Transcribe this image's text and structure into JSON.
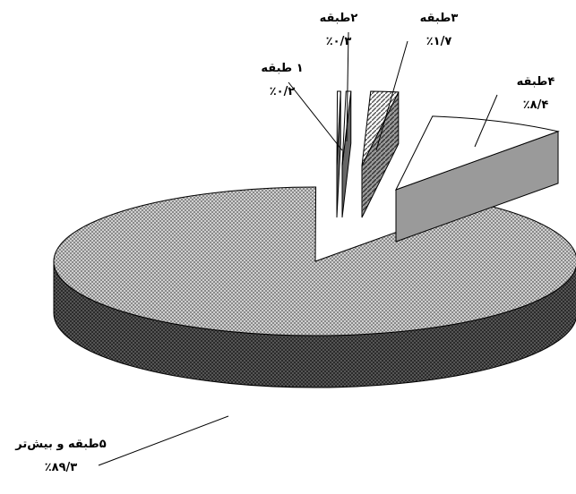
{
  "chart_data": {
    "type": "pie",
    "title": "",
    "slices": [
      {
        "label": "۱ طبقه",
        "value": 0.2,
        "value_label": "٪۰/۲"
      },
      {
        "label": "۲طبقه",
        "value": 0.3,
        "value_label": "٪۰/۳"
      },
      {
        "label": "۳طبقه",
        "value": 1.7,
        "value_label": "٪۱/۷"
      },
      {
        "label": "۴طبقه",
        "value": 8.4,
        "value_label": "٪۸/۴"
      },
      {
        "label": "۵طبقه و بیش‌تر",
        "value": 89.3,
        "value_label": "٪۸۹/۳"
      }
    ],
    "style": "3d-exploded",
    "legend": "none"
  }
}
